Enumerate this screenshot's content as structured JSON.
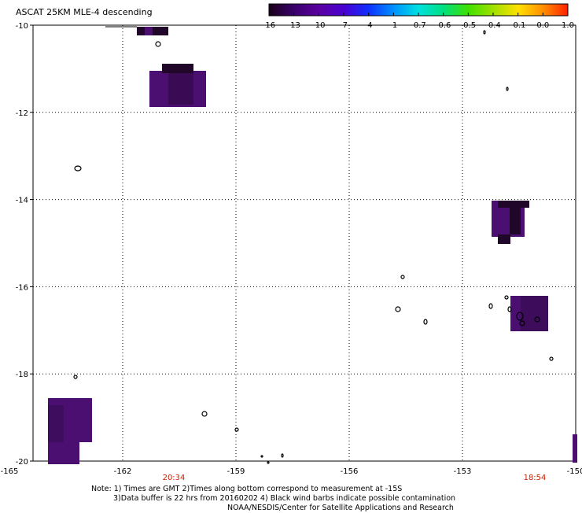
{
  "title": "ASCAT 25KM MLE-4 descending",
  "colorbar": {
    "ticks": [
      "-16",
      "-13",
      "-10",
      "-7",
      "-4",
      "-1",
      "-0.7",
      "-0.6",
      "-0.5",
      "-0.4",
      "-0.1",
      "0.0",
      "1.0"
    ],
    "colors": [
      "#1a001a",
      "#3a006a",
      "#5a00a0",
      "#4a00d0",
      "#1030ff",
      "#0090ff",
      "#00e0e0",
      "#00e080",
      "#40e000",
      "#a0e000",
      "#ffe000",
      "#ff9000",
      "#ff2000"
    ]
  },
  "map": {
    "lat_labels": [
      "-10",
      "-12",
      "-14",
      "-16",
      "-18",
      "-20"
    ],
    "lon_labels": [
      "-165",
      "-162",
      "-159",
      "-156",
      "-153",
      "-150"
    ],
    "lat_range": [
      -20,
      -10
    ],
    "lon_range": [
      -165,
      -150
    ],
    "grid": "dotted",
    "times": [
      "20:34",
      "18:54"
    ],
    "time_color": "#cc2200",
    "swath_color": "#4b0f72",
    "swath_dark_color": "#200628"
  },
  "notes": {
    "line1": "Note: 1) Times are GMT 2)Times along bottom correspond to measurement at -15S",
    "line2": "3)Data buffer is 22 hrs from 20160202 4) Black wind barbs indicate possible contamination",
    "line3": "NOAA/NESDIS/Center for Satellite Applications and Research"
  }
}
